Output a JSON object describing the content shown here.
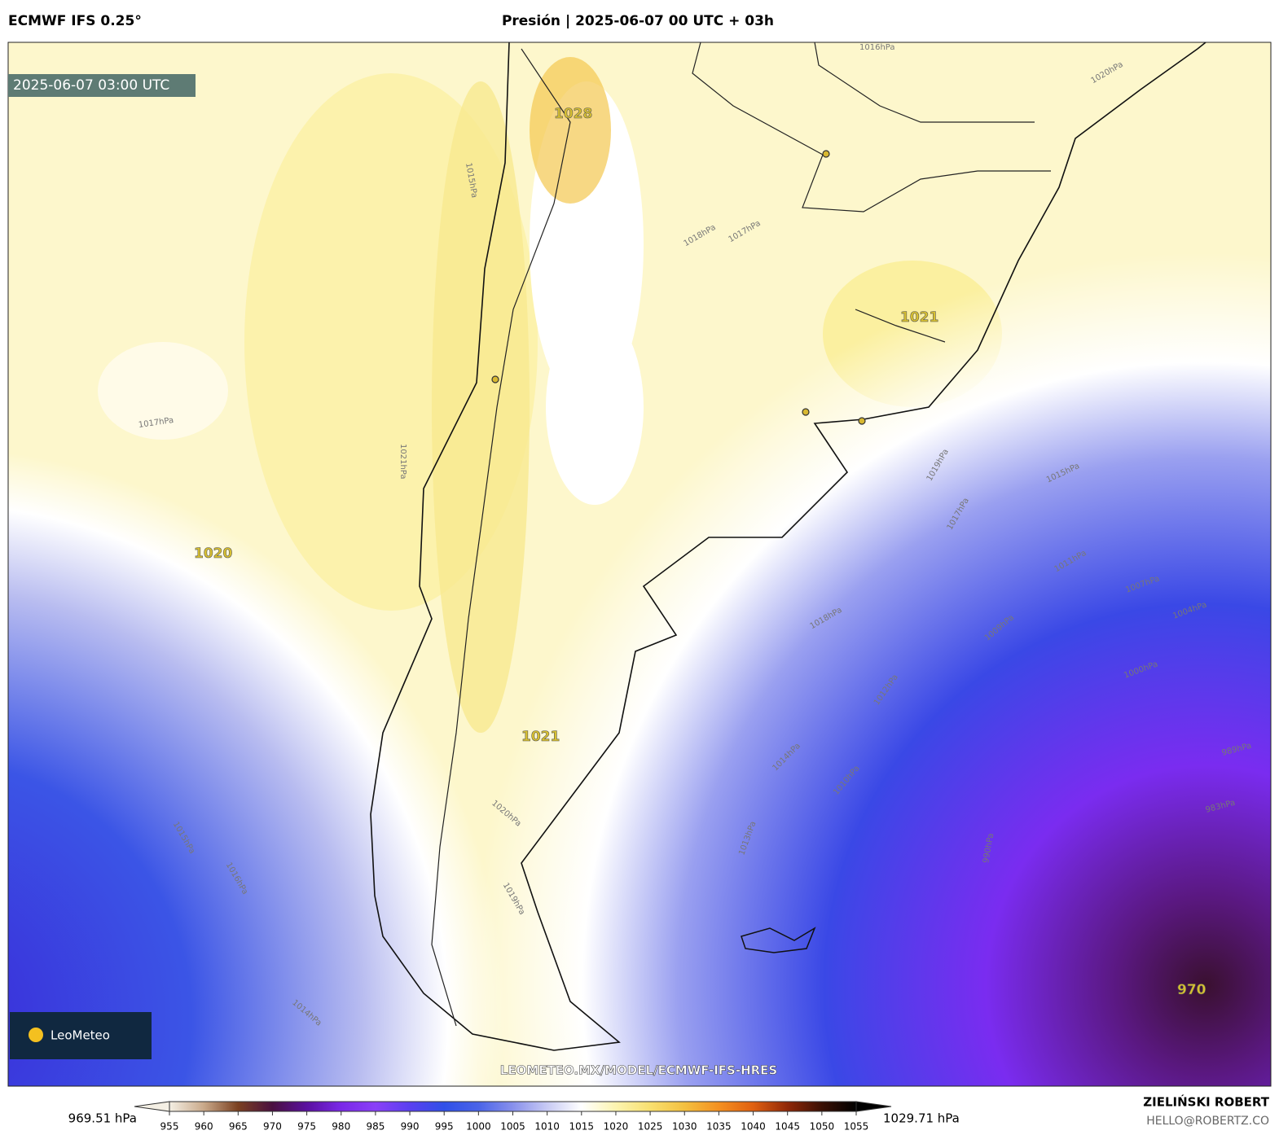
{
  "header": {
    "model": "ECMWF IFS 0.25°",
    "title": "Presión | 2025-06-07 00 UTC + 03h"
  },
  "map": {
    "timestamp": "2025-06-07 03:00 UTC",
    "centers": [
      "1028",
      "1021",
      "1020",
      "1021",
      "970"
    ],
    "contour_labels": [
      "1016hPa",
      "1020hPa",
      "1017hPa",
      "1018hPa",
      "1015hPa",
      "1017hPa",
      "1021hPa",
      "1019hPa",
      "1015hPa",
      "1017hPa",
      "1011hPa",
      "1007hPa",
      "1004hPa",
      "1018hPa",
      "1009hPa",
      "1012hPa",
      "1014hPa",
      "1010hPa",
      "1013hPa",
      "1016hPa",
      "1015hPa",
      "1014hPa",
      "1019hPa",
      "1020hPa",
      "1000hPa",
      "990hPa",
      "983hPa",
      "989hPa"
    ],
    "watermark": "LEOMETEO.MX/MODEL/ECMWF-IFS-HRES",
    "logo": "LeoMeteo"
  },
  "colorbar": {
    "min_label": "969.51 hPa",
    "max_label": "1029.71 hPa",
    "ticks": [
      955,
      960,
      965,
      970,
      975,
      980,
      985,
      990,
      995,
      1000,
      1005,
      1010,
      1015,
      1020,
      1025,
      1030,
      1035,
      1040,
      1045,
      1050,
      1055
    ],
    "colors": [
      "#f4efe4",
      "#c9a98a",
      "#7a4020",
      "#4a1040",
      "#5a10a0",
      "#7a28e8",
      "#8a40f8",
      "#5a40f0",
      "#3050e8",
      "#4a64e8",
      "#8890ec",
      "#c8caf4",
      "#ffffff",
      "#fcf4b0",
      "#f8e070",
      "#f4c040",
      "#f49020",
      "#e06010",
      "#902808",
      "#3a1004",
      "#000000"
    ]
  },
  "footer": {
    "author": "ZIELIŃSKI ROBERT",
    "email": "HELLO@ROBERTZ.CO"
  }
}
